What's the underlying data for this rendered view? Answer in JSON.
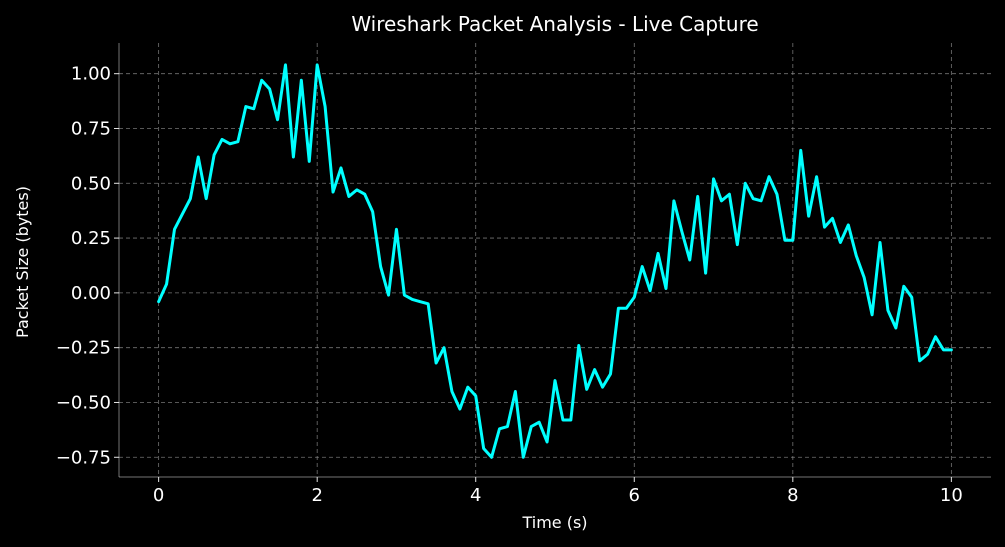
{
  "chart_data": {
    "type": "line",
    "title": "Wireshark Packet Analysis - Live Capture",
    "xlabel": "Time (s)",
    "ylabel": "Packet Size (bytes)",
    "xlim": [
      -0.5,
      10.5
    ],
    "ylim": [
      -0.84,
      1.14
    ],
    "xticks": [
      0,
      2,
      4,
      6,
      8,
      10
    ],
    "xtick_labels": [
      "0",
      "2",
      "4",
      "6",
      "8",
      "10"
    ],
    "yticks": [
      -0.75,
      -0.5,
      -0.25,
      0.0,
      0.25,
      0.5,
      0.75,
      1.0
    ],
    "ytick_labels": [
      "−0.75",
      "−0.50",
      "−0.25",
      "0.00",
      "0.25",
      "0.50",
      "0.75",
      "1.00"
    ],
    "grid": true,
    "background": "#000000",
    "line_color": "#00ffff",
    "text_color": "#ffffff",
    "series": [
      {
        "x": [
          0.0,
          0.1,
          0.2,
          0.3,
          0.4,
          0.5,
          0.6,
          0.7,
          0.8,
          0.9,
          1.0,
          1.1,
          1.2,
          1.3,
          1.4,
          1.5,
          1.6,
          1.7,
          1.8,
          1.9,
          2.0,
          2.1,
          2.2,
          2.3,
          2.4,
          2.5,
          2.6,
          2.7,
          2.8,
          2.9,
          3.0,
          3.1,
          3.2,
          3.3,
          3.4,
          3.5,
          3.6,
          3.7,
          3.8,
          3.9,
          4.0,
          4.1,
          4.2,
          4.3,
          4.4,
          4.5,
          4.6,
          4.7,
          4.8,
          4.9,
          5.0,
          5.1,
          5.2,
          5.3,
          5.4,
          5.5,
          5.6,
          5.7,
          5.8,
          5.9,
          6.0,
          6.1,
          6.2,
          6.3,
          6.4,
          6.5,
          6.6,
          6.7,
          6.8,
          6.9,
          7.0,
          7.1,
          7.2,
          7.3,
          7.4,
          7.5,
          7.6,
          7.7,
          7.8,
          7.9,
          8.0,
          8.1,
          8.2,
          8.3,
          8.4,
          8.5,
          8.6,
          8.7,
          8.8,
          8.9,
          9.0,
          9.1,
          9.2,
          9.3,
          9.4,
          9.5,
          9.6,
          9.7,
          9.8,
          9.9,
          10.0
        ],
        "y": [
          -0.04,
          0.04,
          0.29,
          0.36,
          0.43,
          0.62,
          0.43,
          0.63,
          0.7,
          0.68,
          0.69,
          0.85,
          0.84,
          0.97,
          0.93,
          0.79,
          1.04,
          0.62,
          0.97,
          0.6,
          1.04,
          0.85,
          0.46,
          0.57,
          0.44,
          0.47,
          0.45,
          0.37,
          0.12,
          -0.01,
          0.29,
          -0.01,
          -0.03,
          -0.04,
          -0.05,
          -0.32,
          -0.25,
          -0.45,
          -0.53,
          -0.43,
          -0.47,
          -0.71,
          -0.75,
          -0.62,
          -0.61,
          -0.45,
          -0.75,
          -0.61,
          -0.59,
          -0.68,
          -0.4,
          -0.58,
          -0.58,
          -0.24,
          -0.44,
          -0.35,
          -0.43,
          -0.37,
          -0.07,
          -0.07,
          -0.02,
          0.12,
          0.01,
          0.18,
          0.02,
          0.42,
          0.28,
          0.15,
          0.44,
          0.09,
          0.52,
          0.42,
          0.45,
          0.22,
          0.5,
          0.43,
          0.42,
          0.53,
          0.45,
          0.24,
          0.24,
          0.65,
          0.35,
          0.53,
          0.3,
          0.34,
          0.23,
          0.31,
          0.17,
          0.07,
          -0.1,
          0.23,
          -0.08,
          -0.16,
          0.03,
          -0.02,
          -0.31,
          -0.28,
          -0.2,
          -0.26,
          -0.26
        ]
      }
    ]
  }
}
